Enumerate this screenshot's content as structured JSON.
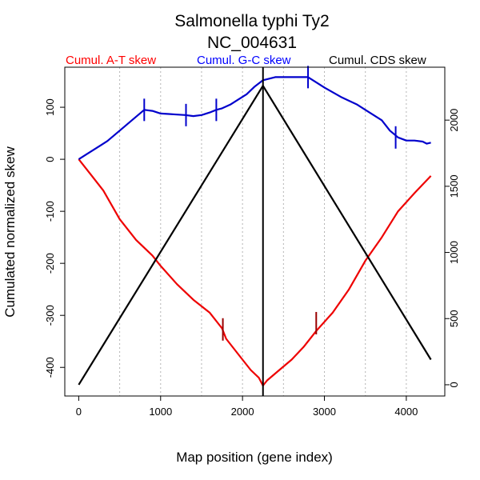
{
  "chart_data": {
    "type": "line",
    "title": "Salmonella typhi Ty2",
    "subtitle": "NC_004631",
    "xlabel": "Map position (gene index)",
    "ylabel": "Cumulated normalized skew",
    "xlim": [
      -170,
      4470
    ],
    "ylim": [
      -455,
      177
    ],
    "y2lim": [
      -85,
      2400
    ],
    "x_ticks": [
      0,
      1000,
      2000,
      3000,
      4000
    ],
    "y_ticks": [
      -400,
      -300,
      -200,
      -100,
      0,
      100
    ],
    "y2_ticks": [
      0,
      500,
      1000,
      1500,
      2000
    ],
    "grid_x": [
      500,
      1000,
      1500,
      2000,
      2500,
      3000,
      3500,
      4000
    ],
    "legend": [
      {
        "label": "Cumul. A-T skew",
        "color": "#ff0000"
      },
      {
        "label": "Cumul. G-C skew",
        "color": "#0000ff"
      },
      {
        "label": "Cumul. CDS skew",
        "color": "#000000"
      }
    ],
    "series": [
      {
        "name": "Cumul. A-T skew",
        "color": "#ee0000",
        "axis": "left",
        "points": [
          [
            0,
            0
          ],
          [
            150,
            -30
          ],
          [
            300,
            -60
          ],
          [
            500,
            -115
          ],
          [
            700,
            -155
          ],
          [
            900,
            -185
          ],
          [
            1000,
            -205
          ],
          [
            1200,
            -240
          ],
          [
            1400,
            -270
          ],
          [
            1600,
            -295
          ],
          [
            1750,
            -325
          ],
          [
            1800,
            -345
          ],
          [
            1900,
            -365
          ],
          [
            2000,
            -385
          ],
          [
            2100,
            -405
          ],
          [
            2200,
            -420
          ],
          [
            2250,
            -435
          ],
          [
            2300,
            -425
          ],
          [
            2450,
            -405
          ],
          [
            2600,
            -385
          ],
          [
            2750,
            -360
          ],
          [
            2900,
            -330
          ],
          [
            3100,
            -295
          ],
          [
            3300,
            -250
          ],
          [
            3500,
            -195
          ],
          [
            3700,
            -150
          ],
          [
            3900,
            -100
          ],
          [
            4100,
            -65
          ],
          [
            4300,
            -32
          ]
        ]
      },
      {
        "name": "Cumul. G-C skew",
        "color": "#0000cc",
        "axis": "left",
        "points": [
          [
            0,
            0
          ],
          [
            100,
            10
          ],
          [
            200,
            20
          ],
          [
            350,
            35
          ],
          [
            500,
            55
          ],
          [
            650,
            75
          ],
          [
            800,
            95
          ],
          [
            900,
            93
          ],
          [
            1000,
            88
          ],
          [
            1100,
            87
          ],
          [
            1200,
            86
          ],
          [
            1300,
            85
          ],
          [
            1400,
            83
          ],
          [
            1500,
            85
          ],
          [
            1600,
            90
          ],
          [
            1680,
            95
          ],
          [
            1750,
            98
          ],
          [
            1850,
            105
          ],
          [
            1950,
            115
          ],
          [
            2050,
            125
          ],
          [
            2150,
            140
          ],
          [
            2250,
            152
          ],
          [
            2400,
            158
          ],
          [
            2550,
            158
          ],
          [
            2700,
            158
          ],
          [
            2800,
            158
          ],
          [
            2900,
            148
          ],
          [
            3000,
            138
          ],
          [
            3200,
            120
          ],
          [
            3400,
            105
          ],
          [
            3550,
            90
          ],
          [
            3700,
            75
          ],
          [
            3800,
            55
          ],
          [
            3900,
            42
          ],
          [
            4000,
            36
          ],
          [
            4100,
            36
          ],
          [
            4200,
            34
          ],
          [
            4250,
            30
          ],
          [
            4300,
            32
          ]
        ]
      },
      {
        "name": "Cumul. CDS skew",
        "color": "#000000",
        "axis": "right",
        "points": [
          [
            0,
            0
          ],
          [
            2250,
            2260
          ],
          [
            4300,
            190
          ]
        ]
      }
    ],
    "vertical_line_x": 2250,
    "markers": [
      {
        "x": 800,
        "y": 95,
        "color": "#0000cc"
      },
      {
        "x": 1310,
        "y": 85,
        "color": "#0000cc"
      },
      {
        "x": 1680,
        "y": 95,
        "color": "#0000cc"
      },
      {
        "x": 2800,
        "y": 158,
        "color": "#0000cc"
      },
      {
        "x": 3870,
        "y": 42,
        "color": "#0000cc"
      },
      {
        "x": 1760,
        "y": -327,
        "color": "#990000"
      },
      {
        "x": 2900,
        "y": -315,
        "color": "#990000"
      }
    ]
  }
}
